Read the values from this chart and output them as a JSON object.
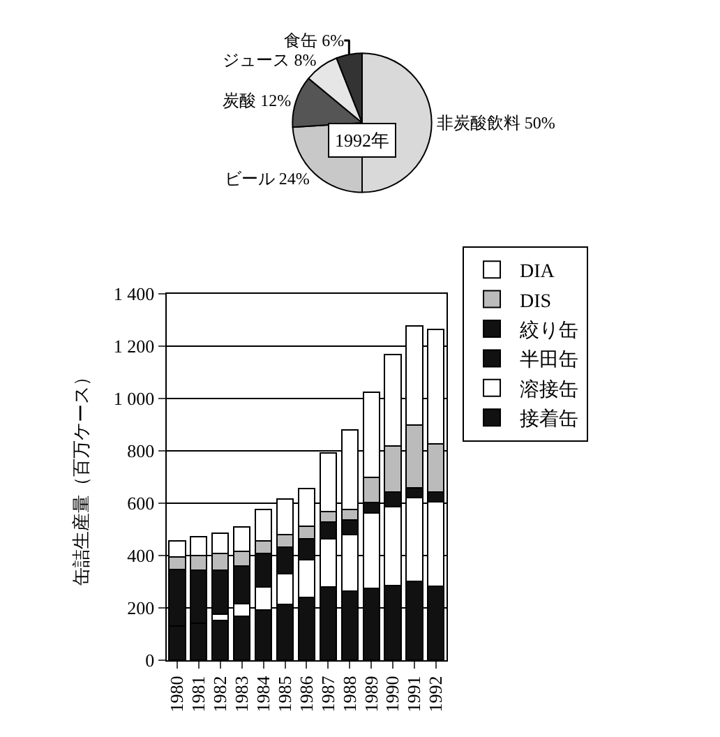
{
  "chart_data": [
    {
      "type": "pie",
      "categories": [
        "非炭酸飲料",
        "ビール",
        "炭酸",
        "ジュース",
        "食缶"
      ],
      "values": [
        50,
        24,
        12,
        8,
        6
      ],
      "colors": [
        "#d9d9d9",
        "#c8c8c8",
        "#555555",
        "#e6e6e6",
        "#333333"
      ],
      "value_labels": [
        "50%",
        "24%",
        "12%",
        "8%",
        "6%"
      ],
      "annotations": [
        "1992年"
      ]
    },
    {
      "type": "bar",
      "stacked": true,
      "ylabel": "缶詰生産量（百万ケース）",
      "categories": [
        "1980",
        "1981",
        "1982",
        "1983",
        "1984",
        "1985",
        "1986",
        "1987",
        "1988",
        "1989",
        "1990",
        "1991",
        "1992"
      ],
      "series": [
        {
          "name": "接着缶",
          "color": "#111111",
          "values": [
            130,
            140,
            152,
            168,
            192,
            213,
            240,
            280,
            264,
            275,
            286,
            302,
            283
          ]
        },
        {
          "name": "溶接缶",
          "color": "#ffffff",
          "values": [
            0,
            0,
            24,
            48,
            88,
            118,
            144,
            184,
            216,
            288,
            301,
            320,
            323
          ]
        },
        {
          "name": "半田缶",
          "color": "#111111",
          "values": [
            217,
            204,
            168,
            144,
            128,
            101,
            80,
            0,
            0,
            0,
            0,
            0,
            0
          ]
        },
        {
          "name": "絞り缶",
          "color": "#111111",
          "values": [
            0,
            0,
            0,
            0,
            0,
            0,
            0,
            64,
            56,
            40,
            56,
            37,
            37
          ]
        },
        {
          "name": "DIS",
          "color": "#bbbbbb",
          "values": [
            48,
            56,
            64,
            56,
            48,
            48,
            48,
            40,
            40,
            96,
            176,
            240,
            184
          ]
        },
        {
          "name": "DIA",
          "color": "#ffffff",
          "values": [
            61,
            72,
            77,
            93,
            120,
            136,
            144,
            224,
            304,
            323,
            347,
            376,
            435
          ]
        }
      ],
      "ylim": [
        0,
        1400
      ],
      "yticks": [
        0,
        200,
        400,
        600,
        800,
        {
          "value": 1000,
          "label": "1 000"
        },
        {
          "value": 1200,
          "label": "1 200"
        },
        {
          "value": 1400,
          "label": "1 400"
        }
      ],
      "grid": "y",
      "legend": "right"
    }
  ]
}
